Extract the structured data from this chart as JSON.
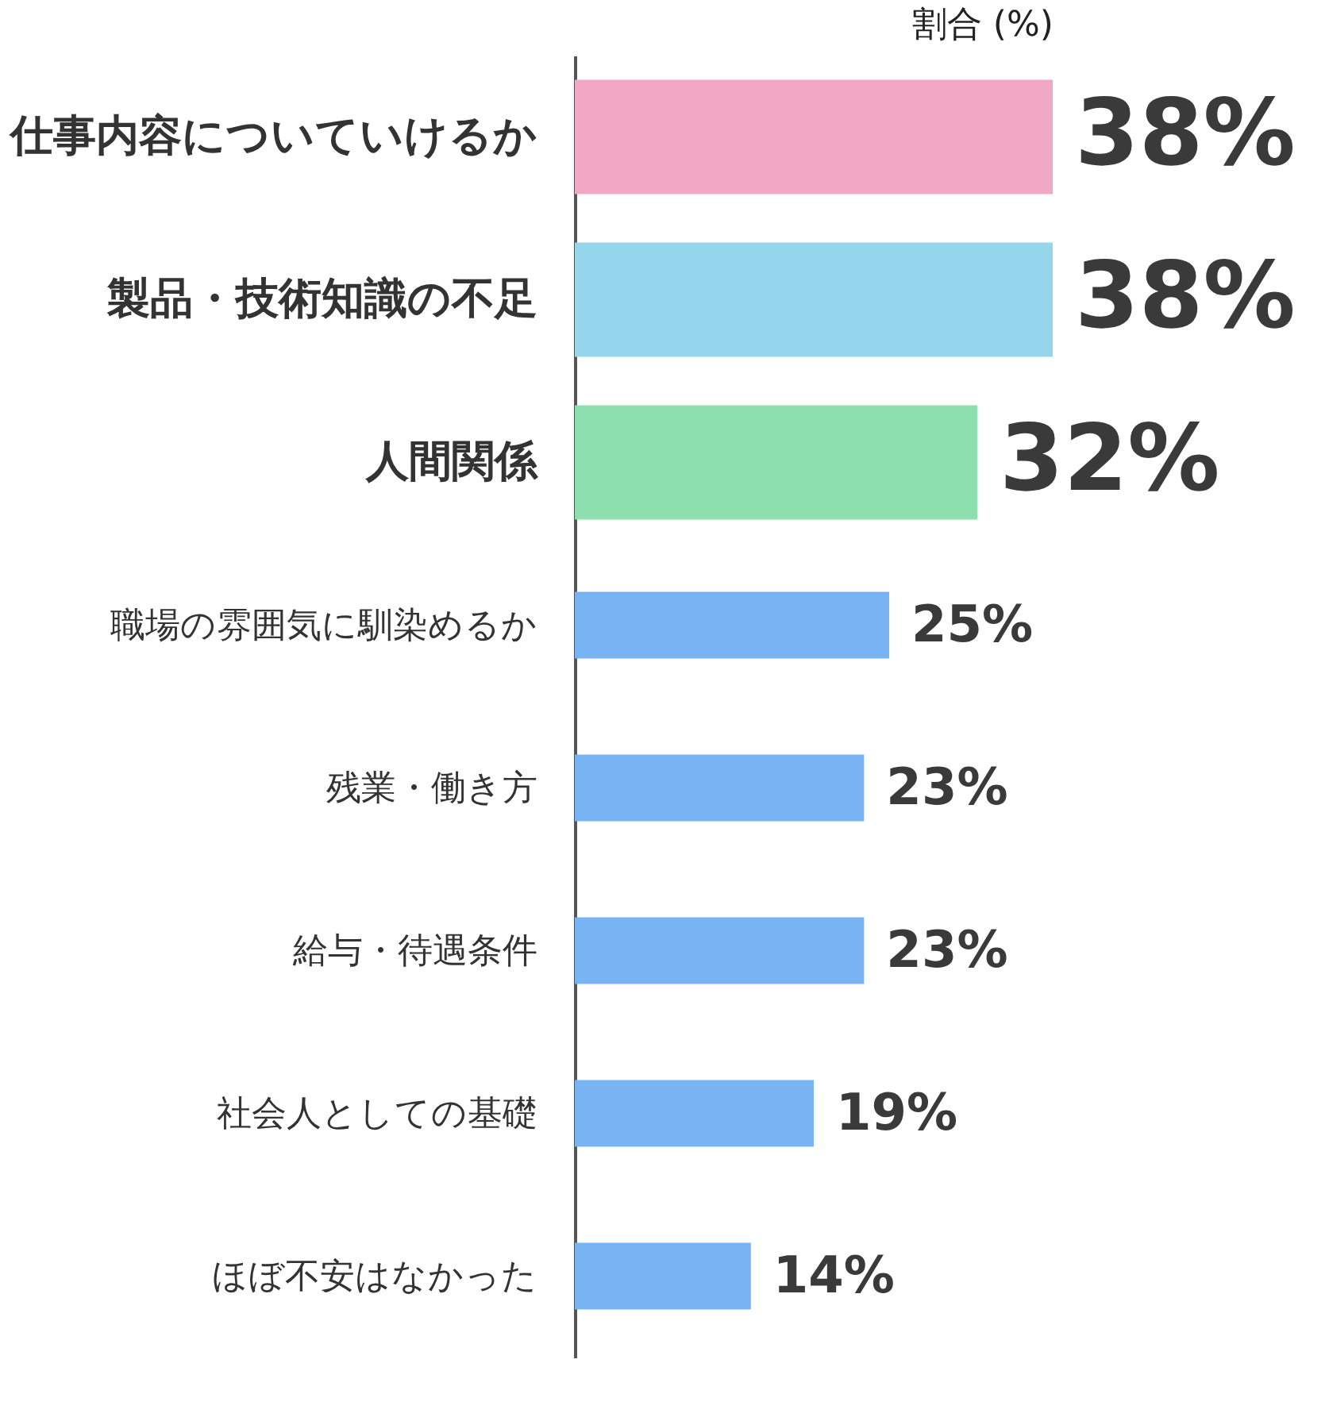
{
  "chart_data": {
    "type": "bar",
    "orientation": "horizontal",
    "xlabel": "割合 (%)",
    "categories": [
      "仕事内容についていけるか",
      "製品・技術知識の不足",
      "人間関係",
      "職場の雰囲気に馴染めるか",
      "残業・働き方",
      "給与・待遇条件",
      "社会人としての基礎",
      "ほぼ不安はなかった"
    ],
    "values": [
      38,
      38,
      32,
      25,
      23,
      23,
      19,
      14
    ],
    "colors": [
      "#f0a8c4",
      "#96d6ec",
      "#8ddfae",
      "#78b4f4",
      "#78b4f4",
      "#78b4f4",
      "#78b4f4",
      "#78b4f4"
    ],
    "value_labels": [
      "38%",
      "38%",
      "32%",
      "25%",
      "23%",
      "23%",
      "19%",
      "14%"
    ],
    "tick_labels": "y"
  }
}
